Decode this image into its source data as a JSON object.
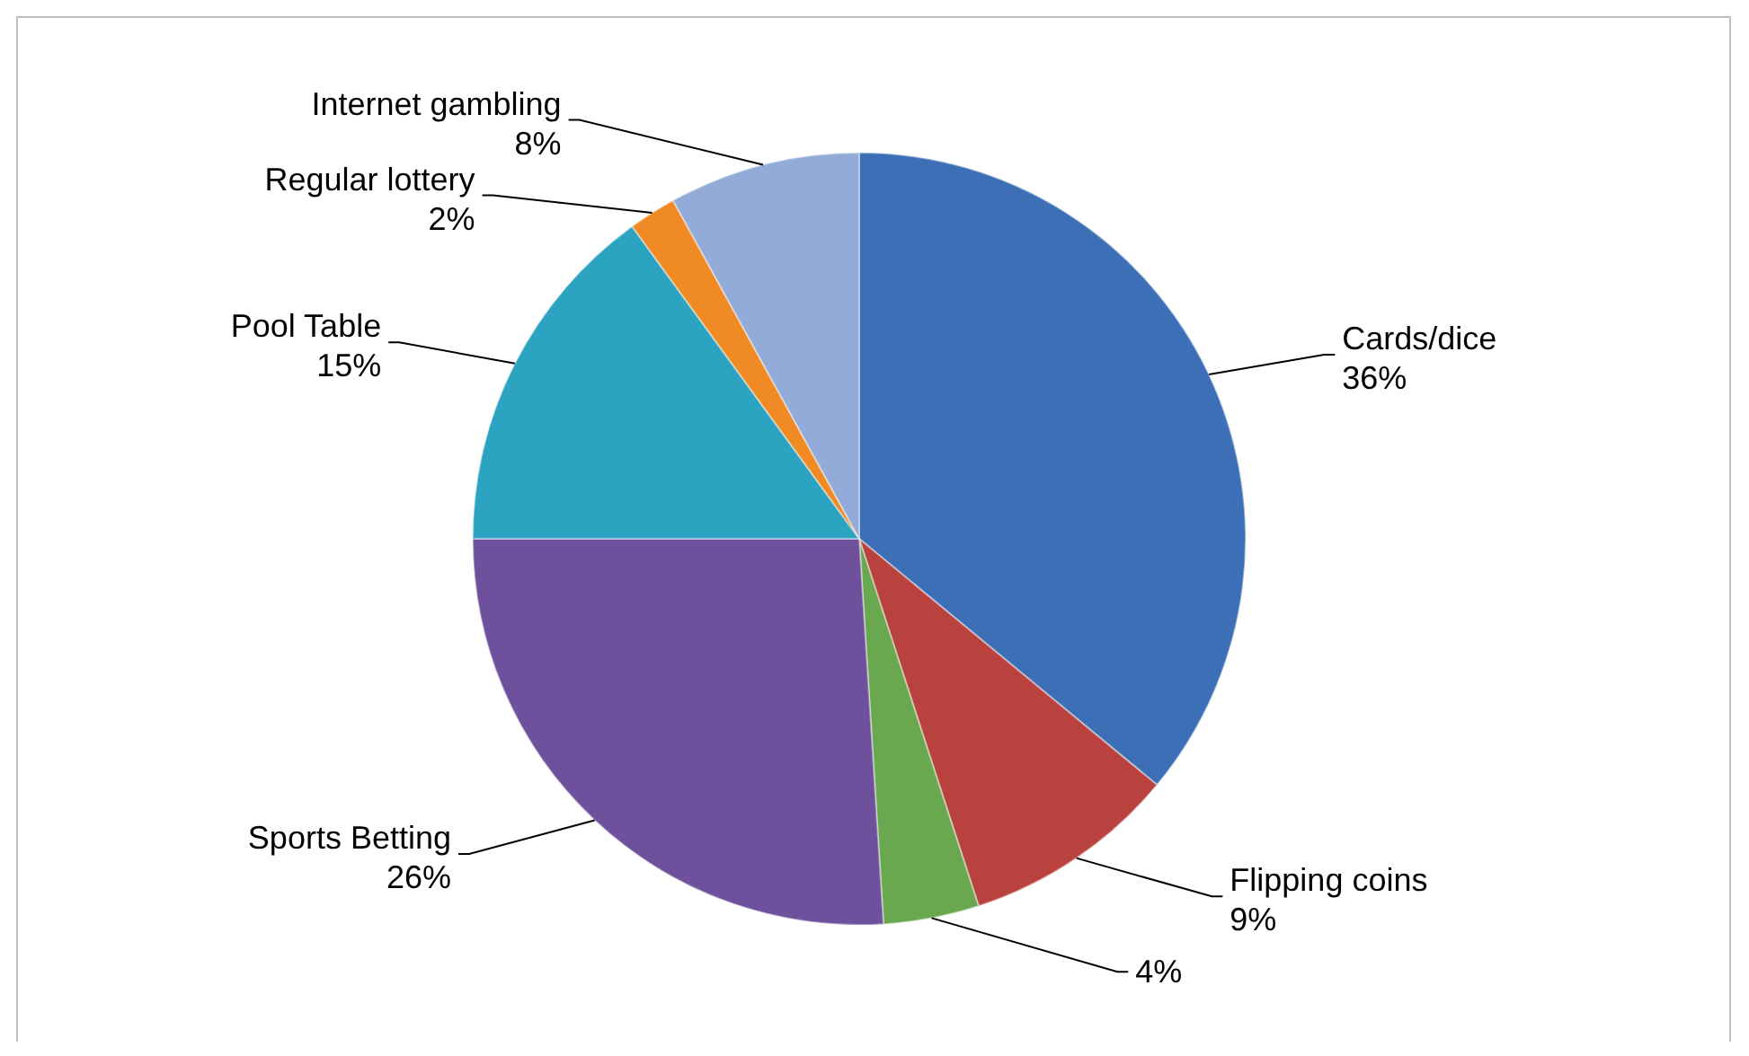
{
  "chart_data": {
    "type": "pie",
    "categories": [
      "Cards/dice",
      "Flipping coins",
      null,
      "Sports Betting",
      "Pool Table",
      "Regular lottery",
      "Internet gambling"
    ],
    "values": [
      36,
      9,
      4,
      26,
      15,
      2,
      8
    ],
    "value_labels": [
      "36%",
      "9%",
      "4%",
      "26%",
      "15%",
      "2%",
      "8%"
    ],
    "colors": [
      "#3c6fb6",
      "#b9423f",
      "#6aa84f",
      "#6e509c",
      "#2ba3c1",
      "#ef8a25",
      "#92abd8"
    ]
  }
}
